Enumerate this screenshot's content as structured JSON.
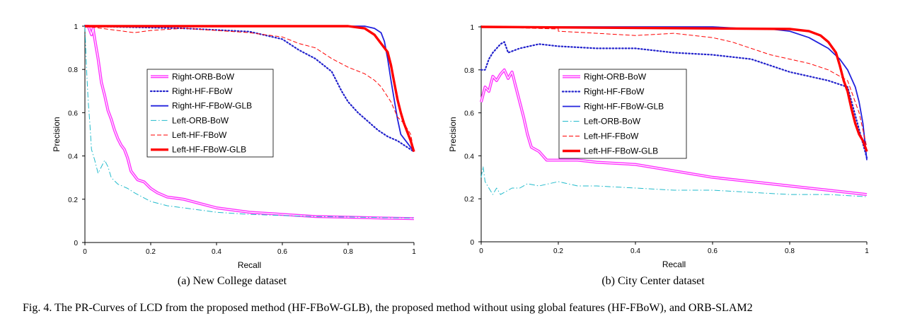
{
  "caption": "Fig. 4.   The PR-Curves of LCD from the proposed method (HF-FBoW-GLB), the proposed method without using global features (HF-FBoW), and ORB-SLAM2",
  "chart_data": [
    {
      "type": "line",
      "subcaption": "(a)  New College dataset",
      "xlabel": "Recall",
      "ylabel": "Precision",
      "xlim": [
        0,
        1
      ],
      "ylim": [
        0,
        1
      ],
      "xticks": [
        "0",
        "0.2",
        "0.4",
        "0.6",
        "0.8",
        "1"
      ],
      "yticks": [
        "0",
        "0.2",
        "0.4",
        "0.6",
        "0.8",
        "1"
      ],
      "grid": false,
      "legend_position": "center-left",
      "series": [
        {
          "name": "Right-ORB-BoW",
          "color": "#ff33ff",
          "style": "double",
          "points": [
            [
              0.0,
              1.0
            ],
            [
              0.01,
              1.0
            ],
            [
              0.02,
              0.96
            ],
            [
              0.025,
              0.99
            ],
            [
              0.03,
              0.94
            ],
            [
              0.04,
              0.85
            ],
            [
              0.05,
              0.74
            ],
            [
              0.06,
              0.68
            ],
            [
              0.07,
              0.61
            ],
            [
              0.08,
              0.57
            ],
            [
              0.09,
              0.52
            ],
            [
              0.1,
              0.48
            ],
            [
              0.11,
              0.45
            ],
            [
              0.12,
              0.43
            ],
            [
              0.13,
              0.39
            ],
            [
              0.14,
              0.33
            ],
            [
              0.16,
              0.29
            ],
            [
              0.18,
              0.28
            ],
            [
              0.2,
              0.25
            ],
            [
              0.22,
              0.23
            ],
            [
              0.25,
              0.21
            ],
            [
              0.3,
              0.2
            ],
            [
              0.35,
              0.18
            ],
            [
              0.4,
              0.16
            ],
            [
              0.5,
              0.14
            ],
            [
              0.6,
              0.13
            ],
            [
              0.7,
              0.12
            ],
            [
              0.8,
              0.117
            ],
            [
              0.9,
              0.113
            ],
            [
              1.0,
              0.11
            ]
          ]
        },
        {
          "name": "Right-HF-FBoW",
          "color": "#2222cc",
          "style": "dotted",
          "points": [
            [
              0.0,
              1.0
            ],
            [
              0.3,
              0.99
            ],
            [
              0.5,
              0.975
            ],
            [
              0.6,
              0.94
            ],
            [
              0.65,
              0.89
            ],
            [
              0.7,
              0.85
            ],
            [
              0.75,
              0.79
            ],
            [
              0.78,
              0.7
            ],
            [
              0.8,
              0.65
            ],
            [
              0.83,
              0.6
            ],
            [
              0.86,
              0.56
            ],
            [
              0.89,
              0.52
            ],
            [
              0.92,
              0.49
            ],
            [
              0.95,
              0.47
            ],
            [
              0.97,
              0.45
            ],
            [
              1.0,
              0.42
            ]
          ]
        },
        {
          "name": "Right-HF-FBoW-GLB",
          "color": "#2222dd",
          "style": "solid",
          "points": [
            [
              0.0,
              1.0
            ],
            [
              0.85,
              1.0
            ],
            [
              0.88,
              0.99
            ],
            [
              0.9,
              0.97
            ],
            [
              0.91,
              0.93
            ],
            [
              0.92,
              0.85
            ],
            [
              0.93,
              0.75
            ],
            [
              0.94,
              0.66
            ],
            [
              0.95,
              0.57
            ],
            [
              0.96,
              0.5
            ],
            [
              0.98,
              0.46
            ],
            [
              1.0,
              0.42
            ]
          ]
        },
        {
          "name": "Left-ORB-BoW",
          "color": "#22bbcc",
          "style": "dashdot",
          "points": [
            [
              0.0,
              1.0
            ],
            [
              0.005,
              0.8
            ],
            [
              0.01,
              0.65
            ],
            [
              0.015,
              0.55
            ],
            [
              0.02,
              0.43
            ],
            [
              0.03,
              0.38
            ],
            [
              0.04,
              0.32
            ],
            [
              0.05,
              0.35
            ],
            [
              0.06,
              0.38
            ],
            [
              0.07,
              0.35
            ],
            [
              0.08,
              0.3
            ],
            [
              0.1,
              0.27
            ],
            [
              0.13,
              0.25
            ],
            [
              0.15,
              0.23
            ],
            [
              0.2,
              0.19
            ],
            [
              0.25,
              0.17
            ],
            [
              0.3,
              0.16
            ],
            [
              0.4,
              0.14
            ],
            [
              0.5,
              0.13
            ],
            [
              0.6,
              0.125
            ],
            [
              0.7,
              0.12
            ],
            [
              0.8,
              0.118
            ],
            [
              0.9,
              0.115
            ],
            [
              1.0,
              0.113
            ]
          ]
        },
        {
          "name": "Left-HF-FBoW",
          "color": "#ff0000",
          "style": "dashed",
          "points": [
            [
              0.0,
              1.0
            ],
            [
              0.05,
              0.99
            ],
            [
              0.1,
              0.98
            ],
            [
              0.15,
              0.97
            ],
            [
              0.2,
              0.98
            ],
            [
              0.3,
              0.99
            ],
            [
              0.4,
              0.98
            ],
            [
              0.5,
              0.97
            ],
            [
              0.6,
              0.95
            ],
            [
              0.65,
              0.92
            ],
            [
              0.7,
              0.9
            ],
            [
              0.75,
              0.85
            ],
            [
              0.8,
              0.81
            ],
            [
              0.85,
              0.78
            ],
            [
              0.88,
              0.75
            ],
            [
              0.9,
              0.72
            ],
            [
              0.93,
              0.65
            ],
            [
              0.95,
              0.58
            ],
            [
              0.97,
              0.55
            ],
            [
              0.99,
              0.5
            ],
            [
              1.0,
              0.42
            ]
          ]
        },
        {
          "name": "Left-HF-FBoW-GLB",
          "color": "#ff0000",
          "style": "thick",
          "points": [
            [
              0.0,
              1.0
            ],
            [
              0.8,
              1.0
            ],
            [
              0.85,
              0.99
            ],
            [
              0.88,
              0.96
            ],
            [
              0.9,
              0.92
            ],
            [
              0.92,
              0.88
            ],
            [
              0.93,
              0.82
            ],
            [
              0.94,
              0.74
            ],
            [
              0.95,
              0.66
            ],
            [
              0.96,
              0.6
            ],
            [
              0.97,
              0.55
            ],
            [
              0.98,
              0.51
            ],
            [
              0.99,
              0.47
            ],
            [
              1.0,
              0.42
            ]
          ]
        }
      ]
    },
    {
      "type": "line",
      "subcaption": "(b)  City Center dataset",
      "xlabel": "Recall",
      "ylabel": "Precision",
      "xlim": [
        0,
        1
      ],
      "ylim": [
        0,
        1
      ],
      "xticks": [
        "0",
        "0.2",
        "0.4",
        "0.6",
        "0.8",
        "1"
      ],
      "yticks": [
        "0",
        "0.2",
        "0.4",
        "0.6",
        "0.8",
        "1"
      ],
      "grid": false,
      "legend_position": "center-left",
      "series": [
        {
          "name": "Right-ORB-BoW",
          "color": "#ff33ff",
          "style": "double",
          "points": [
            [
              0.0,
              0.65
            ],
            [
              0.01,
              0.72
            ],
            [
              0.02,
              0.7
            ],
            [
              0.03,
              0.77
            ],
            [
              0.04,
              0.75
            ],
            [
              0.05,
              0.78
            ],
            [
              0.06,
              0.8
            ],
            [
              0.07,
              0.76
            ],
            [
              0.08,
              0.79
            ],
            [
              0.09,
              0.72
            ],
            [
              0.1,
              0.65
            ],
            [
              0.11,
              0.58
            ],
            [
              0.12,
              0.5
            ],
            [
              0.13,
              0.44
            ],
            [
              0.15,
              0.42
            ],
            [
              0.17,
              0.38
            ],
            [
              0.2,
              0.38
            ],
            [
              0.25,
              0.38
            ],
            [
              0.3,
              0.37
            ],
            [
              0.4,
              0.36
            ],
            [
              0.5,
              0.33
            ],
            [
              0.6,
              0.3
            ],
            [
              0.7,
              0.28
            ],
            [
              0.8,
              0.26
            ],
            [
              0.9,
              0.24
            ],
            [
              1.0,
              0.22
            ]
          ]
        },
        {
          "name": "Right-HF-FBoW",
          "color": "#2222cc",
          "style": "dotted",
          "points": [
            [
              0.0,
              0.8
            ],
            [
              0.01,
              0.8
            ],
            [
              0.02,
              0.85
            ],
            [
              0.03,
              0.88
            ],
            [
              0.05,
              0.92
            ],
            [
              0.06,
              0.93
            ],
            [
              0.07,
              0.88
            ],
            [
              0.1,
              0.9
            ],
            [
              0.15,
              0.92
            ],
            [
              0.2,
              0.91
            ],
            [
              0.3,
              0.9
            ],
            [
              0.4,
              0.9
            ],
            [
              0.5,
              0.88
            ],
            [
              0.6,
              0.87
            ],
            [
              0.7,
              0.85
            ],
            [
              0.75,
              0.82
            ],
            [
              0.8,
              0.79
            ],
            [
              0.85,
              0.77
            ],
            [
              0.9,
              0.75
            ],
            [
              0.95,
              0.72
            ],
            [
              1.0,
              0.39
            ]
          ]
        },
        {
          "name": "Right-HF-FBoW-GLB",
          "color": "#2222dd",
          "style": "solid",
          "points": [
            [
              0.0,
              1.0
            ],
            [
              0.6,
              1.0
            ],
            [
              0.7,
              0.99
            ],
            [
              0.75,
              0.99
            ],
            [
              0.8,
              0.98
            ],
            [
              0.85,
              0.95
            ],
            [
              0.88,
              0.92
            ],
            [
              0.9,
              0.9
            ],
            [
              0.93,
              0.85
            ],
            [
              0.95,
              0.8
            ],
            [
              0.97,
              0.72
            ],
            [
              0.98,
              0.65
            ],
            [
              0.99,
              0.55
            ],
            [
              1.0,
              0.38
            ]
          ]
        },
        {
          "name": "Left-ORB-BoW",
          "color": "#22bbcc",
          "style": "dashdot",
          "points": [
            [
              0.0,
              0.3
            ],
            [
              0.005,
              0.35
            ],
            [
              0.01,
              0.28
            ],
            [
              0.02,
              0.25
            ],
            [
              0.03,
              0.22
            ],
            [
              0.04,
              0.25
            ],
            [
              0.05,
              0.22
            ],
            [
              0.06,
              0.23
            ],
            [
              0.08,
              0.25
            ],
            [
              0.1,
              0.25
            ],
            [
              0.12,
              0.27
            ],
            [
              0.15,
              0.26
            ],
            [
              0.2,
              0.28
            ],
            [
              0.25,
              0.26
            ],
            [
              0.3,
              0.26
            ],
            [
              0.4,
              0.25
            ],
            [
              0.5,
              0.24
            ],
            [
              0.6,
              0.24
            ],
            [
              0.7,
              0.23
            ],
            [
              0.8,
              0.22
            ],
            [
              0.9,
              0.22
            ],
            [
              1.0,
              0.21
            ]
          ]
        },
        {
          "name": "Left-HF-FBoW",
          "color": "#ff0000",
          "style": "dashed",
          "points": [
            [
              0.0,
              1.0
            ],
            [
              0.2,
              0.99
            ],
            [
              0.2,
              0.98
            ],
            [
              0.3,
              0.97
            ],
            [
              0.4,
              0.96
            ],
            [
              0.5,
              0.97
            ],
            [
              0.6,
              0.95
            ],
            [
              0.65,
              0.93
            ],
            [
              0.7,
              0.9
            ],
            [
              0.75,
              0.87
            ],
            [
              0.8,
              0.85
            ],
            [
              0.85,
              0.83
            ],
            [
              0.9,
              0.8
            ],
            [
              0.95,
              0.75
            ],
            [
              0.98,
              0.6
            ],
            [
              1.0,
              0.44
            ]
          ]
        },
        {
          "name": "Left-HF-FBoW-GLB",
          "color": "#ff0000",
          "style": "thick",
          "points": [
            [
              0.0,
              1.0
            ],
            [
              0.8,
              0.99
            ],
            [
              0.85,
              0.98
            ],
            [
              0.88,
              0.96
            ],
            [
              0.9,
              0.93
            ],
            [
              0.92,
              0.88
            ],
            [
              0.93,
              0.82
            ],
            [
              0.94,
              0.75
            ],
            [
              0.95,
              0.7
            ],
            [
              0.96,
              0.62
            ],
            [
              0.97,
              0.55
            ],
            [
              0.98,
              0.5
            ],
            [
              0.99,
              0.47
            ],
            [
              1.0,
              0.42
            ]
          ]
        }
      ]
    }
  ]
}
